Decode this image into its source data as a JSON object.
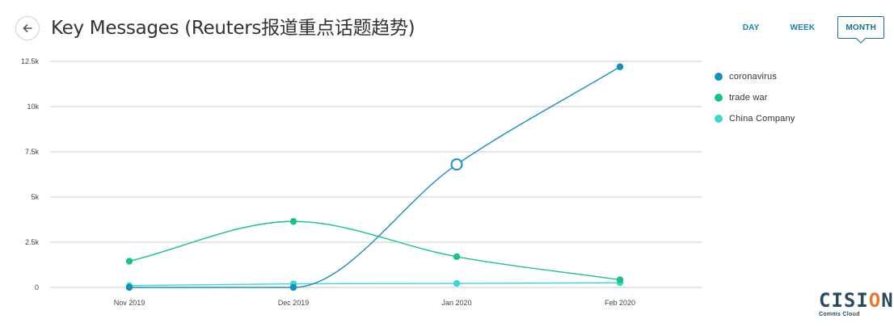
{
  "header": {
    "title": "Key Messages (Reuters报道重点话题趋势)",
    "back_icon": "arrow-left-icon",
    "periods": [
      {
        "label": "DAY",
        "active": false
      },
      {
        "label": "WEEK",
        "active": false
      },
      {
        "label": "MONTH",
        "active": true
      }
    ]
  },
  "legend": [
    {
      "name": "coronavirus",
      "color": "#1a8fb5"
    },
    {
      "name": "trade war",
      "color": "#1cc084"
    },
    {
      "name": "China Company",
      "color": "#3dd6d0"
    }
  ],
  "chart_data": {
    "type": "line",
    "categories": [
      "Nov 2019",
      "Dec 2019",
      "Jan 2020",
      "Feb 2020"
    ],
    "y_ticks": [
      "0",
      "2.5k",
      "5k",
      "7.5k",
      "10k",
      "12.5k"
    ],
    "ylim": [
      0,
      12500
    ],
    "grid": true,
    "legend_position": "right",
    "series": [
      {
        "name": "coronavirus",
        "color": "#1a8fb5",
        "values": [
          0,
          0,
          6800,
          12200
        ],
        "highlighted_index": 2
      },
      {
        "name": "trade war",
        "color": "#1cc084",
        "values": [
          1450,
          3650,
          1700,
          420
        ]
      },
      {
        "name": "China Company",
        "color": "#3dd6d0",
        "values": [
          100,
          200,
          220,
          260
        ]
      }
    ]
  },
  "brand": {
    "name_main": "CISI",
    "name_accent": "O",
    "name_end": "N",
    "subtitle": "Comms Cloud"
  }
}
